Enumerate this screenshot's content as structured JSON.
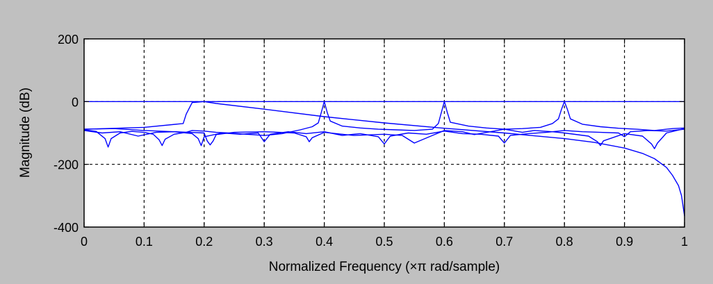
{
  "window": {
    "background_color": "#c0c0c0"
  },
  "chart_data": {
    "type": "line",
    "title": "",
    "xlabel": "Normalized Frequency  (×π rad/sample)",
    "ylabel": "Magnitude (dB)",
    "xlim": [
      0,
      1
    ],
    "ylim": [
      -400,
      200
    ],
    "xticks": [
      0,
      0.1,
      0.2,
      0.3,
      0.4,
      0.5,
      0.6,
      0.7,
      0.8,
      0.9,
      1
    ],
    "xtick_labels": [
      "0",
      "0.1",
      "0.2",
      "0.3",
      "0.4",
      "0.5",
      "0.6",
      "0.7",
      "0.8",
      "0.9",
      "1"
    ],
    "yticks": [
      -400,
      -200,
      0,
      200
    ],
    "ytick_labels": [
      "-400",
      "-200",
      "0",
      "200"
    ],
    "grid": true,
    "grid_style": "dashed",
    "line_color": "#0000ff",
    "series": [
      {
        "x": [
          0,
          1
        ],
        "y": [
          0,
          0
        ]
      },
      {
        "x": [
          0,
          0.1,
          0.165,
          0.17,
          0.18,
          0.2,
          0.22,
          0.3,
          0.4,
          0.5,
          0.6,
          0.7,
          0.8,
          0.85,
          0.9,
          0.93,
          0.95,
          0.97,
          0.98,
          0.99,
          0.995,
          1
        ],
        "y": [
          -88,
          -82,
          -70,
          -40,
          -3,
          0,
          -6,
          -24,
          -48,
          -68,
          -85,
          -100,
          -118,
          -130,
          -148,
          -165,
          -182,
          -210,
          -235,
          -268,
          -300,
          -365
        ]
      },
      {
        "x": [
          0,
          0.02,
          0.035,
          0.04,
          0.045,
          0.06,
          0.08,
          0.1,
          0.115,
          0.125,
          0.13,
          0.135,
          0.15,
          0.17,
          0.18,
          0.2,
          0.22,
          0.24,
          0.27,
          0.3,
          0.33,
          0.36,
          0.38,
          0.39,
          0.395,
          0.4,
          0.405,
          0.41,
          0.43,
          0.46,
          0.49,
          0.52,
          0.55,
          0.58,
          0.59,
          0.595,
          0.6,
          0.605,
          0.61,
          0.64,
          0.67,
          0.7,
          0.73,
          0.76,
          0.78,
          0.79,
          0.795,
          0.8,
          0.805,
          0.81,
          0.83,
          0.86,
          0.89,
          0.92,
          0.95,
          0.98,
          1
        ],
        "y": [
          -90,
          -95,
          -118,
          -145,
          -118,
          -100,
          -95,
          -98,
          -104,
          -122,
          -140,
          -120,
          -104,
          -98,
          -92,
          -94,
          -98,
          -100,
          -104,
          -108,
          -102,
          -90,
          -80,
          -68,
          -35,
          0,
          -35,
          -62,
          -78,
          -84,
          -88,
          -90,
          -92,
          -88,
          -70,
          -35,
          0,
          -35,
          -66,
          -78,
          -84,
          -88,
          -86,
          -82,
          -70,
          -55,
          -25,
          0,
          -25,
          -55,
          -72,
          -80,
          -85,
          -88,
          -92,
          -86,
          -84
        ]
      },
      {
        "x": [
          0,
          0.05,
          0.1,
          0.15,
          0.2,
          0.205,
          0.21,
          0.215,
          0.22,
          0.25,
          0.3,
          0.35,
          0.37,
          0.375,
          0.38,
          0.4,
          0.42,
          0.45,
          0.5,
          0.53,
          0.55,
          0.58,
          0.6,
          0.63,
          0.65,
          0.68,
          0.7,
          0.73,
          0.75,
          0.78,
          0.8,
          0.84,
          0.855,
          0.86,
          0.865,
          0.9,
          0.93,
          0.945,
          0.95,
          0.955,
          0.97,
          1
        ],
        "y": [
          -88,
          -86,
          -92,
          -96,
          -100,
          -125,
          -138,
          -125,
          -105,
          -98,
          -96,
          -100,
          -112,
          -128,
          -115,
          -98,
          -102,
          -108,
          -104,
          -108,
          -132,
          -108,
          -92,
          -96,
          -105,
          -95,
          -88,
          -98,
          -92,
          -96,
          -100,
          -110,
          -128,
          -140,
          -125,
          -102,
          -110,
          -135,
          -150,
          -132,
          -100,
          -86
        ]
      },
      {
        "x": [
          0,
          0.03,
          0.06,
          0.09,
          0.12,
          0.15,
          0.18,
          0.19,
          0.195,
          0.2,
          0.23,
          0.26,
          0.29,
          0.3,
          0.31,
          0.34,
          0.37,
          0.4,
          0.43,
          0.46,
          0.49,
          0.5,
          0.51,
          0.54,
          0.57,
          0.6,
          0.63,
          0.66,
          0.69,
          0.7,
          0.71,
          0.74,
          0.77,
          0.8,
          0.83,
          0.86,
          0.89,
          0.9,
          0.91,
          0.94,
          0.97,
          1
        ],
        "y": [
          -92,
          -100,
          -96,
          -110,
          -98,
          -96,
          -102,
          -118,
          -140,
          -112,
          -100,
          -104,
          -100,
          -128,
          -104,
          -96,
          -102,
          -96,
          -108,
          -102,
          -112,
          -135,
          -110,
          -100,
          -104,
          -94,
          -102,
          -104,
          -110,
          -132,
          -108,
          -102,
          -98,
          -92,
          -96,
          -98,
          -100,
          -112,
          -96,
          -92,
          -94,
          -88
        ]
      }
    ]
  }
}
